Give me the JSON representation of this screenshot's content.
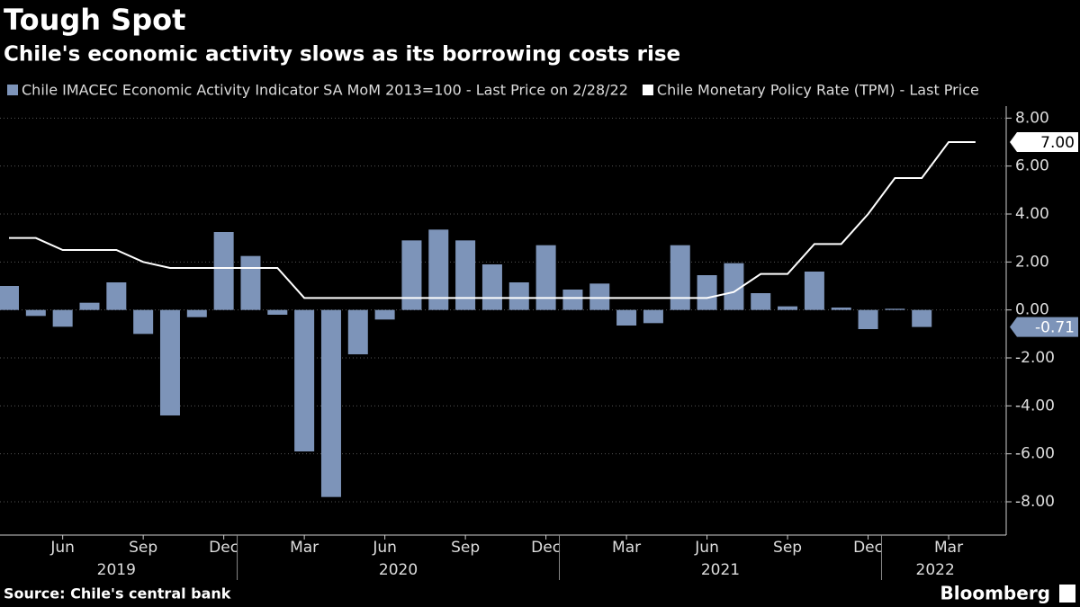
{
  "chart_data": {
    "type": "bar_line",
    "title": "Tough Spot",
    "subtitle": "Chile's economic activity slows as its borrowing costs rise",
    "source": "Source: Chile's central bank",
    "brand": "Bloomberg",
    "x": [
      "2019-04",
      "2019-05",
      "2019-06",
      "2019-07",
      "2019-08",
      "2019-09",
      "2019-10",
      "2019-11",
      "2019-12",
      "2020-01",
      "2020-02",
      "2020-03",
      "2020-04",
      "2020-05",
      "2020-06",
      "2020-07",
      "2020-08",
      "2020-09",
      "2020-10",
      "2020-11",
      "2020-12",
      "2021-01",
      "2021-02",
      "2021-03",
      "2021-04",
      "2021-05",
      "2021-06",
      "2021-07",
      "2021-08",
      "2021-09",
      "2021-10",
      "2021-11",
      "2021-12",
      "2022-01",
      "2022-02",
      "2022-03",
      "2022-04"
    ],
    "series": [
      {
        "name": "Chile IMACEC Economic Activity Indicator SA MoM 2013=100 - Last Price on 2/28/22",
        "type": "bar",
        "color": "#7d94b9",
        "values": [
          1.0,
          -0.25,
          -0.7,
          0.3,
          1.15,
          -1.0,
          -4.4,
          -0.3,
          3.25,
          2.25,
          -0.2,
          -5.9,
          -7.8,
          -1.85,
          -0.4,
          2.9,
          3.35,
          2.9,
          1.9,
          1.15,
          2.7,
          0.85,
          1.1,
          -0.65,
          -0.55,
          2.7,
          1.45,
          1.95,
          0.7,
          0.15,
          1.6,
          0.1,
          -0.8,
          0.05,
          -0.71,
          null,
          null
        ],
        "last_label": "-0.71"
      },
      {
        "name": "Chile Monetary Policy Rate (TPM) - Last Price",
        "type": "line",
        "color": "#ffffff",
        "values": [
          3.0,
          3.0,
          2.5,
          2.5,
          2.5,
          2.0,
          1.75,
          1.75,
          1.75,
          1.75,
          1.75,
          0.5,
          0.5,
          0.5,
          0.5,
          0.5,
          0.5,
          0.5,
          0.5,
          0.5,
          0.5,
          0.5,
          0.5,
          0.5,
          0.5,
          0.5,
          0.5,
          0.75,
          1.5,
          1.5,
          2.75,
          2.75,
          4.0,
          5.5,
          5.5,
          7.0,
          7.0
        ],
        "last_label": "7.00"
      }
    ],
    "ylim": [
      -9.2,
      8.5
    ],
    "yticks": [
      {
        "value": 8,
        "label": "8.00"
      },
      {
        "value": 6,
        "label": "6.00"
      },
      {
        "value": 4,
        "label": "4.00"
      },
      {
        "value": 2,
        "label": "2.00"
      },
      {
        "value": 0,
        "label": "0.00"
      },
      {
        "value": -2,
        "label": "-2.00"
      },
      {
        "value": -4,
        "label": "-4.00"
      },
      {
        "value": -6,
        "label": "-6.00"
      },
      {
        "value": -8,
        "label": "-8.00"
      }
    ],
    "xticks": [
      {
        "value": "2019-06",
        "label": "Jun"
      },
      {
        "value": "2019-09",
        "label": "Sep"
      },
      {
        "value": "2019-12",
        "label": "Dec"
      },
      {
        "value": "2020-03",
        "label": "Mar"
      },
      {
        "value": "2020-06",
        "label": "Jun"
      },
      {
        "value": "2020-09",
        "label": "Sep"
      },
      {
        "value": "2020-12",
        "label": "Dec"
      },
      {
        "value": "2021-03",
        "label": "Mar"
      },
      {
        "value": "2021-06",
        "label": "Jun"
      },
      {
        "value": "2021-09",
        "label": "Sep"
      },
      {
        "value": "2021-12",
        "label": "Dec"
      },
      {
        "value": "2022-03",
        "label": "Mar"
      }
    ],
    "year_labels": [
      "2019",
      "2020",
      "2021",
      "2022"
    ],
    "grid": true
  }
}
